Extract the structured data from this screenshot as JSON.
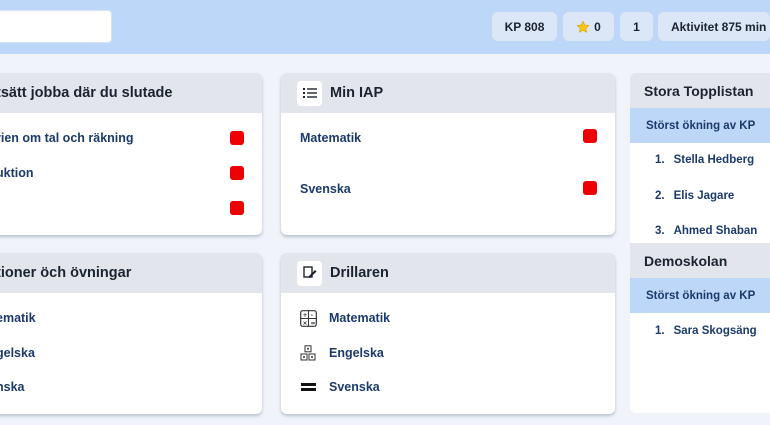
{
  "header": {
    "search_value": "",
    "kp_label": "KP 808",
    "stars_count": "0",
    "level": "1",
    "activity_label": "Aktivitet 875 min"
  },
  "continue_card": {
    "title": "tsätt jobba där du slutade",
    "items": [
      {
        "label": "rien om tal och räkning",
        "status_color": "#ee0000"
      },
      {
        "label": "uktion",
        "status_color": "#ee0000"
      },
      {
        "label": "",
        "status_color": "#ee0000"
      }
    ]
  },
  "iap_card": {
    "title": "Min IAP",
    "icon": "list-icon",
    "items": [
      {
        "label": "Matematik",
        "status_color": "#ee0000"
      },
      {
        "label": "Svenska",
        "status_color": "#ee0000"
      }
    ]
  },
  "lessons_card": {
    "title": "tioner öch övningar",
    "items": [
      {
        "label": "ematik"
      },
      {
        "label": "gelska"
      },
      {
        "label": "nska"
      }
    ]
  },
  "driller_card": {
    "title": "Drillaren",
    "icon": "pencil-note-icon",
    "items": [
      {
        "label": "Matematik",
        "icon": "calculator-icon"
      },
      {
        "label": "Engelska",
        "icon": "letter-blocks-icon"
      },
      {
        "label": "Svenska",
        "icon": "bars-icon"
      }
    ]
  },
  "toplist": {
    "title": "Stora Topplistan",
    "subtitle": "Störst ökning av KP",
    "entries": [
      {
        "rank": "1.",
        "name": "Stella Hedberg"
      },
      {
        "rank": "2.",
        "name": "Elis Jagare"
      },
      {
        "rank": "3.",
        "name": "Ahmed Shaban"
      }
    ]
  },
  "school_list": {
    "title": "Demoskolan",
    "subtitle": "Störst ökning av KP",
    "entries": [
      {
        "rank": "1.",
        "name": "Sara Skogsäng"
      }
    ]
  },
  "colors": {
    "topbar": "#bcd7f7",
    "accent_text": "#1b3a6b",
    "status_red": "#ee0000",
    "star": "#f5c518"
  }
}
